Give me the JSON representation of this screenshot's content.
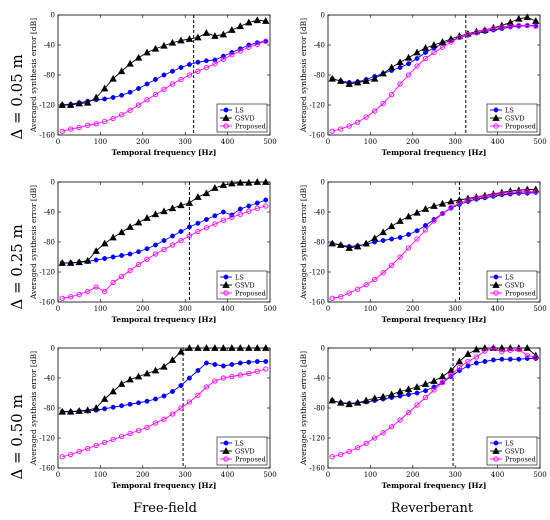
{
  "figure": {
    "column_labels": [
      "Free-field",
      "Reverberant"
    ],
    "row_labels": [
      "Δ = 0.05 m",
      "Δ = 0.25 m",
      "Δ = 0.50 m"
    ]
  },
  "colors": {
    "LS": "#0000ff",
    "GSVD": "#000000",
    "Proposed": "#ff00ff"
  },
  "chart_data": [
    {
      "type": "line",
      "panel": "free-field Δ=0.05",
      "xlabel": "Temporal frequency [Hz]",
      "ylabel": "Averaged synthesis error [dB]",
      "xlim": [
        0,
        500
      ],
      "ylim": [
        -160,
        0
      ],
      "xticks": [
        0,
        100,
        200,
        300,
        400,
        500
      ],
      "yticks": [
        0,
        -40,
        -80,
        -120,
        -160
      ],
      "vline": 320,
      "legend": "bottom-right",
      "x": [
        10,
        30,
        50,
        70,
        90,
        110,
        130,
        150,
        170,
        190,
        210,
        230,
        250,
        270,
        290,
        310,
        330,
        350,
        370,
        390,
        410,
        430,
        450,
        470,
        490
      ],
      "series": [
        {
          "name": "LS",
          "marker": "circle",
          "values": [
            -120,
            -119,
            -117,
            -115,
            -113,
            -112,
            -110,
            -107,
            -103,
            -98,
            -92,
            -86,
            -80,
            -75,
            -70,
            -66,
            -63,
            -61,
            -60,
            -55,
            -50,
            -45,
            -40,
            -37,
            -35
          ]
        },
        {
          "name": "GSVD",
          "marker": "triangle",
          "values": [
            -120,
            -120,
            -118,
            -117,
            -110,
            -98,
            -85,
            -75,
            -65,
            -57,
            -50,
            -45,
            -41,
            -37,
            -34,
            -32,
            -30,
            -24,
            -28,
            -26,
            -20,
            -15,
            -10,
            -7,
            -8
          ]
        },
        {
          "name": "Proposed",
          "marker": "circle-open",
          "values": [
            -155,
            -152,
            -150,
            -147,
            -145,
            -142,
            -138,
            -133,
            -127,
            -120,
            -113,
            -106,
            -99,
            -92,
            -86,
            -80,
            -75,
            -70,
            -65,
            -59,
            -53,
            -48,
            -43,
            -39,
            -35
          ]
        }
      ]
    },
    {
      "type": "line",
      "panel": "reverberant Δ=0.05",
      "xlabel": "Temporal frequency [Hz]",
      "ylabel": "Averaged synthesis error [dB]",
      "xlim": [
        0,
        500
      ],
      "ylim": [
        -160,
        0
      ],
      "xticks": [
        0,
        100,
        200,
        300,
        400,
        500
      ],
      "yticks": [
        0,
        -40,
        -80,
        -120,
        -160
      ],
      "vline": 325,
      "legend": "bottom-right",
      "x": [
        10,
        30,
        50,
        70,
        90,
        110,
        130,
        150,
        170,
        190,
        210,
        230,
        250,
        270,
        290,
        310,
        330,
        350,
        370,
        390,
        410,
        430,
        450,
        470,
        490
      ],
      "series": [
        {
          "name": "LS",
          "marker": "circle",
          "values": [
            -85,
            -88,
            -90,
            -89,
            -86,
            -82,
            -78,
            -74,
            -70,
            -65,
            -58,
            -50,
            -44,
            -38,
            -34,
            -30,
            -27,
            -24,
            -22,
            -20,
            -18,
            -16,
            -15,
            -14,
            -14
          ]
        },
        {
          "name": "GSVD",
          "marker": "triangle",
          "values": [
            -85,
            -88,
            -92,
            -90,
            -88,
            -85,
            -78,
            -70,
            -63,
            -57,
            -50,
            -44,
            -40,
            -36,
            -32,
            -28,
            -25,
            -22,
            -20,
            -17,
            -14,
            -10,
            -5,
            -3,
            -8
          ]
        },
        {
          "name": "Proposed",
          "marker": "circle-open",
          "values": [
            -155,
            -152,
            -148,
            -143,
            -136,
            -128,
            -118,
            -106,
            -92,
            -80,
            -68,
            -58,
            -50,
            -43,
            -36,
            -30,
            -26,
            -23,
            -20,
            -18,
            -16,
            -15,
            -14,
            -14,
            -15
          ]
        }
      ]
    },
    {
      "type": "line",
      "panel": "free-field Δ=0.25",
      "xlabel": "Temporal frequency [Hz]",
      "ylabel": "Averaged synthesis error [dB]",
      "xlim": [
        0,
        500
      ],
      "ylim": [
        -160,
        0
      ],
      "xticks": [
        0,
        100,
        200,
        300,
        400,
        500
      ],
      "yticks": [
        0,
        -40,
        -80,
        -120,
        -160
      ],
      "vline": 310,
      "legend": "bottom-right",
      "x": [
        10,
        30,
        50,
        70,
        90,
        110,
        130,
        150,
        170,
        190,
        210,
        230,
        250,
        270,
        290,
        310,
        330,
        350,
        370,
        390,
        410,
        430,
        450,
        470,
        490
      ],
      "series": [
        {
          "name": "LS",
          "marker": "circle",
          "values": [
            -108,
            -108,
            -107,
            -106,
            -104,
            -102,
            -100,
            -98,
            -96,
            -93,
            -89,
            -84,
            -78,
            -72,
            -66,
            -60,
            -55,
            -50,
            -45,
            -40,
            -44,
            -36,
            -32,
            -28,
            -24
          ]
        },
        {
          "name": "GSVD",
          "marker": "triangle",
          "values": [
            -108,
            -108,
            -107,
            -105,
            -92,
            -82,
            -74,
            -67,
            -60,
            -54,
            -48,
            -43,
            -39,
            -35,
            -31,
            -28,
            -20,
            -15,
            -8,
            -4,
            -2,
            -1,
            -1,
            0,
            0
          ]
        },
        {
          "name": "Proposed",
          "marker": "circle-open",
          "values": [
            -155,
            -153,
            -150,
            -146,
            -140,
            -146,
            -134,
            -126,
            -118,
            -110,
            -103,
            -96,
            -90,
            -84,
            -78,
            -72,
            -66,
            -61,
            -56,
            -51,
            -47,
            -43,
            -39,
            -35,
            -32
          ]
        }
      ]
    },
    {
      "type": "line",
      "panel": "reverberant Δ=0.25",
      "xlabel": "Temporal frequency [Hz]",
      "ylabel": "Averaged synthesis error [dB]",
      "xlim": [
        0,
        500
      ],
      "ylim": [
        -160,
        0
      ],
      "xticks": [
        0,
        100,
        200,
        300,
        400,
        500
      ],
      "yticks": [
        0,
        -40,
        -80,
        -120,
        -160
      ],
      "vline": 310,
      "legend": "bottom-right",
      "x": [
        10,
        30,
        50,
        70,
        90,
        110,
        130,
        150,
        170,
        190,
        210,
        230,
        250,
        270,
        290,
        310,
        330,
        350,
        370,
        390,
        410,
        430,
        450,
        470,
        490
      ],
      "series": [
        {
          "name": "LS",
          "marker": "circle",
          "values": [
            -82,
            -84,
            -86,
            -85,
            -83,
            -80,
            -78,
            -76,
            -74,
            -70,
            -65,
            -58,
            -50,
            -42,
            -35,
            -30,
            -26,
            -23,
            -21,
            -19,
            -17,
            -16,
            -15,
            -15,
            -14
          ]
        },
        {
          "name": "GSVD",
          "marker": "triangle",
          "values": [
            -82,
            -84,
            -88,
            -86,
            -82,
            -75,
            -67,
            -59,
            -52,
            -46,
            -41,
            -36,
            -32,
            -29,
            -26,
            -24,
            -22,
            -20,
            -18,
            -16,
            -14,
            -12,
            -11,
            -10,
            -10
          ]
        },
        {
          "name": "Proposed",
          "marker": "circle-open",
          "values": [
            -155,
            -153,
            -148,
            -143,
            -137,
            -130,
            -121,
            -111,
            -100,
            -88,
            -76,
            -64,
            -52,
            -42,
            -34,
            -28,
            -24,
            -21,
            -19,
            -17,
            -15,
            -14,
            -13,
            -13,
            -13
          ]
        }
      ]
    },
    {
      "type": "line",
      "panel": "free-field Δ=0.50",
      "xlabel": "Temporal frequency [Hz]",
      "ylabel": "Averaged synthesis error [dB]",
      "xlim": [
        0,
        500
      ],
      "ylim": [
        -160,
        0
      ],
      "xticks": [
        0,
        100,
        200,
        300,
        400,
        500
      ],
      "yticks": [
        0,
        -40,
        -80,
        -120,
        -160
      ],
      "vline": 295,
      "legend": "bottom-right",
      "x": [
        10,
        30,
        50,
        70,
        90,
        110,
        130,
        150,
        170,
        190,
        210,
        230,
        250,
        270,
        290,
        310,
        330,
        350,
        370,
        390,
        410,
        430,
        450,
        470,
        490
      ],
      "series": [
        {
          "name": "LS",
          "marker": "circle",
          "values": [
            -85,
            -85,
            -84,
            -84,
            -83,
            -81,
            -79,
            -77,
            -75,
            -73,
            -71,
            -68,
            -64,
            -58,
            -50,
            -40,
            -30,
            -20,
            -22,
            -24,
            -22,
            -20,
            -19,
            -18,
            -18
          ]
        },
        {
          "name": "GSVD",
          "marker": "triangle",
          "values": [
            -85,
            -85,
            -84,
            -83,
            -80,
            -68,
            -58,
            -48,
            -42,
            -38,
            -34,
            -30,
            -25,
            -16,
            -5,
            0,
            0,
            0,
            0,
            0,
            0,
            0,
            0,
            0,
            0
          ]
        },
        {
          "name": "Proposed",
          "marker": "circle-open",
          "values": [
            -145,
            -142,
            -138,
            -134,
            -130,
            -126,
            -122,
            -118,
            -114,
            -110,
            -106,
            -100,
            -95,
            -88,
            -80,
            -72,
            -63,
            -52,
            -44,
            -40,
            -38,
            -36,
            -34,
            -31,
            -28
          ]
        }
      ]
    },
    {
      "type": "line",
      "panel": "reverberant Δ=0.50",
      "xlabel": "Temporal frequency [Hz]",
      "ylabel": "Averaged synthesis error [dB]",
      "xlim": [
        0,
        500
      ],
      "ylim": [
        -160,
        0
      ],
      "xticks": [
        0,
        100,
        200,
        300,
        400,
        500
      ],
      "yticks": [
        0,
        -40,
        -80,
        -120,
        -160
      ],
      "vline": 295,
      "legend": "bottom-right",
      "x": [
        10,
        30,
        50,
        70,
        90,
        110,
        130,
        150,
        170,
        190,
        210,
        230,
        250,
        270,
        290,
        310,
        330,
        350,
        370,
        390,
        410,
        430,
        450,
        470,
        490
      ],
      "series": [
        {
          "name": "LS",
          "marker": "circle",
          "values": [
            -70,
            -73,
            -74,
            -73,
            -72,
            -70,
            -68,
            -66,
            -64,
            -62,
            -60,
            -57,
            -52,
            -46,
            -38,
            -30,
            -24,
            -20,
            -18,
            -16,
            -15,
            -15,
            -15,
            -14,
            -14
          ]
        },
        {
          "name": "GSVD",
          "marker": "triangle",
          "values": [
            -70,
            -73,
            -75,
            -73,
            -70,
            -67,
            -65,
            -62,
            -58,
            -55,
            -52,
            -48,
            -44,
            -38,
            -30,
            -18,
            -8,
            -2,
            0,
            0,
            0,
            0,
            0,
            0,
            -10
          ]
        },
        {
          "name": "Proposed",
          "marker": "circle-open",
          "values": [
            -145,
            -142,
            -138,
            -133,
            -127,
            -120,
            -113,
            -105,
            -96,
            -86,
            -76,
            -66,
            -56,
            -46,
            -36,
            -26,
            -18,
            -12,
            -4,
            0,
            -5,
            -3,
            -2,
            -10,
            -12
          ]
        }
      ]
    }
  ]
}
